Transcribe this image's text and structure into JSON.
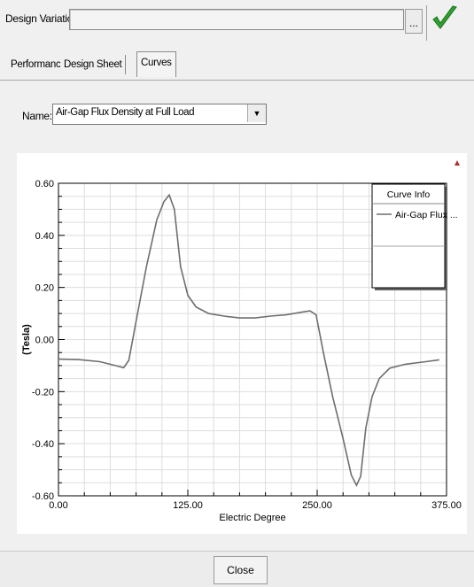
{
  "header": {
    "design_variation_label": "Design Variation:",
    "design_variation_value": "",
    "browse_label": "...",
    "apply_icon": "green-check-icon"
  },
  "tabs": [
    {
      "label": "Performance",
      "active": false
    },
    {
      "label": "Design Sheet",
      "active": false
    },
    {
      "label": "Curves",
      "active": true
    }
  ],
  "curve_select": {
    "label": "Name:",
    "value": "Air-Gap Flux Density at Full Load",
    "arrow_icon": "dropdown-arrow-icon"
  },
  "colors": {
    "curve": "#6e6e6e",
    "grid": "#dddddd",
    "check": "#2fa12f"
  },
  "footer": {
    "close_label": "Close"
  },
  "chart_data": {
    "type": "line",
    "title": "",
    "xlabel": "Electric Degree",
    "ylabel": "(Tesla)",
    "xlim": [
      0,
      375
    ],
    "ylim": [
      -0.6,
      0.6
    ],
    "x_ticks": [
      "0.00",
      "125.00",
      "250.00",
      "375.00"
    ],
    "y_ticks": [
      "0.60",
      "0.40",
      "0.20",
      "0.00",
      "-0.20",
      "-0.40",
      "-0.60"
    ],
    "grid": true,
    "legend": {
      "title": "Curve Info",
      "placement": "top-right"
    },
    "series": [
      {
        "name": "Air-Gap Flux ...",
        "x": [
          0,
          20,
          40,
          55,
          63,
          68,
          75,
          85,
          95,
          102,
          107,
          112,
          118,
          125,
          133,
          145,
          160,
          175,
          190,
          205,
          220,
          235,
          243,
          249,
          256,
          265,
          275,
          283,
          288,
          292,
          297,
          303,
          310,
          320,
          335,
          355,
          368
        ],
        "y": [
          -0.075,
          -0.077,
          -0.085,
          -0.1,
          -0.108,
          -0.08,
          0.07,
          0.28,
          0.46,
          0.53,
          0.555,
          0.5,
          0.28,
          0.17,
          0.125,
          0.1,
          0.09,
          0.083,
          0.083,
          0.09,
          0.095,
          0.105,
          0.11,
          0.095,
          -0.05,
          -0.22,
          -0.38,
          -0.52,
          -0.56,
          -0.525,
          -0.34,
          -0.22,
          -0.15,
          -0.11,
          -0.095,
          -0.085,
          -0.078
        ]
      }
    ]
  }
}
